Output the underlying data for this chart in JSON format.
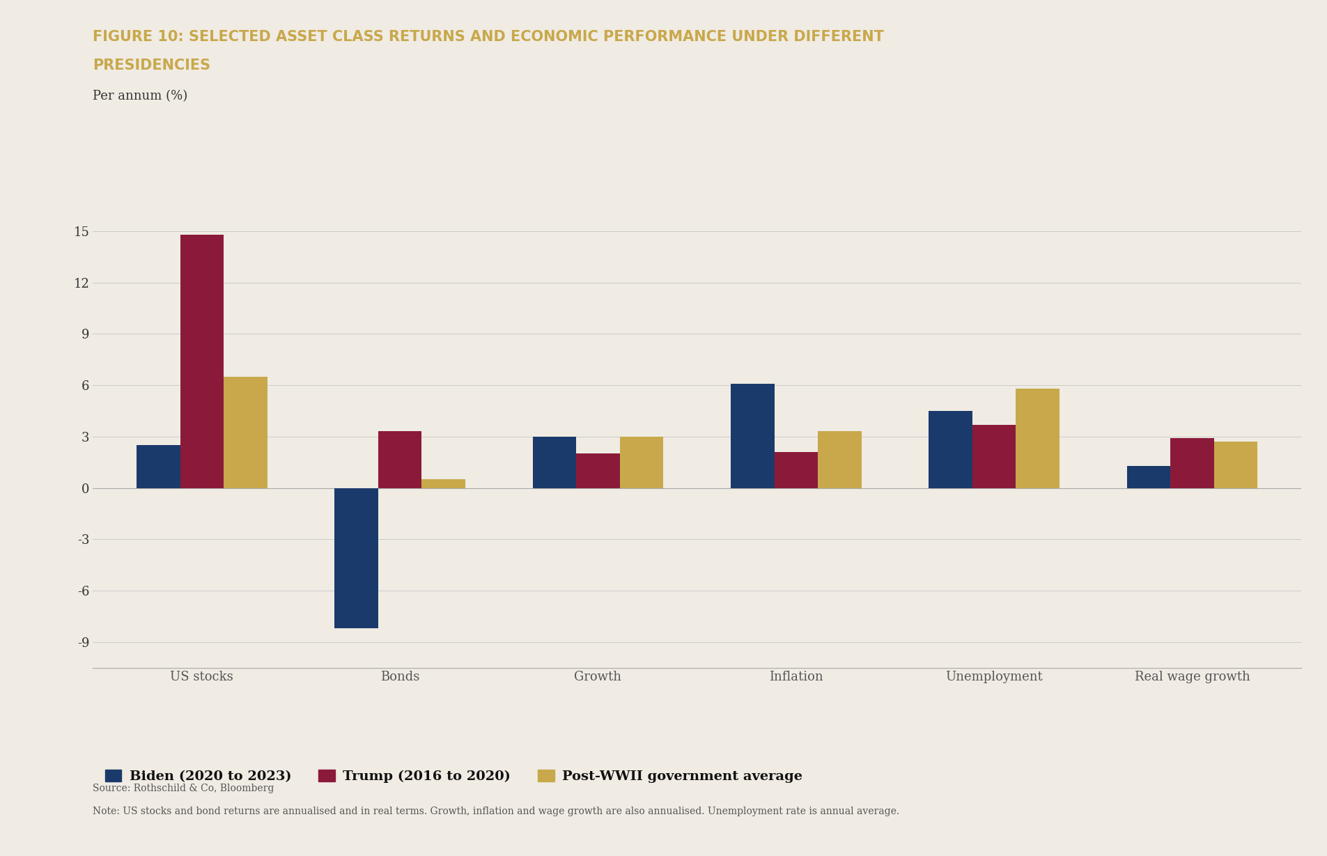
{
  "title_line1": "FIGURE 10: SELECTED ASSET CLASS RETURNS AND ECONOMIC PERFORMANCE UNDER DIFFERENT",
  "title_line2": "PRESIDENCIES",
  "ylabel": "Per annum (%)",
  "categories": [
    "US stocks",
    "Bonds",
    "Growth",
    "Inflation",
    "Unemployment",
    "Real wage growth"
  ],
  "series": {
    "Biden (2020 to 2023)": [
      2.5,
      -8.2,
      3.0,
      6.1,
      4.5,
      1.3
    ],
    "Trump (2016 to 2020)": [
      14.8,
      3.3,
      2.0,
      2.1,
      3.7,
      2.9
    ],
    "Post-WWII government average": [
      6.5,
      0.5,
      3.0,
      3.3,
      5.8,
      2.7
    ]
  },
  "colors": {
    "Biden (2020 to 2023)": "#1a3a6b",
    "Trump (2016 to 2020)": "#8b1a3a",
    "Post-WWII government average": "#c8a84b"
  },
  "ylim": [
    -10.5,
    17
  ],
  "yticks": [
    -9,
    -6,
    -3,
    0,
    3,
    6,
    9,
    12,
    15
  ],
  "background_color": "#f0ebe3",
  "title_color": "#c8a84b",
  "title_fontsize": 15,
  "axis_label_fontsize": 13,
  "tick_fontsize": 13,
  "legend_fontsize": 14,
  "source_text": "Source: Rothschild & Co, Bloomberg",
  "note_text": "Note: US stocks and bond returns are annualised and in real terms. Growth, inflation and wage growth are also annualised. Unemployment rate is annual average.",
  "bar_width": 0.22
}
